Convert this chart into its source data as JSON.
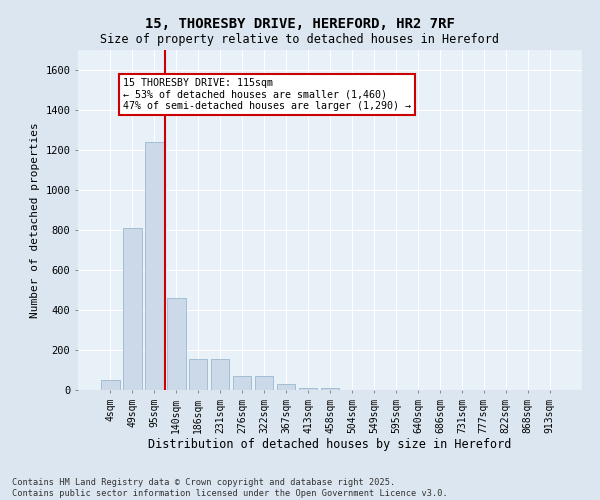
{
  "title1": "15, THORESBY DRIVE, HEREFORD, HR2 7RF",
  "title2": "Size of property relative to detached houses in Hereford",
  "xlabel": "Distribution of detached houses by size in Hereford",
  "ylabel": "Number of detached properties",
  "categories": [
    "4sqm",
    "49sqm",
    "95sqm",
    "140sqm",
    "186sqm",
    "231sqm",
    "276sqm",
    "322sqm",
    "367sqm",
    "413sqm",
    "458sqm",
    "504sqm",
    "549sqm",
    "595sqm",
    "640sqm",
    "686sqm",
    "731sqm",
    "777sqm",
    "822sqm",
    "868sqm",
    "913sqm"
  ],
  "values": [
    50,
    810,
    1240,
    460,
    155,
    155,
    70,
    70,
    30,
    10,
    10,
    0,
    0,
    0,
    0,
    0,
    0,
    0,
    0,
    0,
    0
  ],
  "bar_color": "#ccd9e8",
  "bar_edgecolor": "#9ab8d0",
  "vline_x": 2.5,
  "vline_color": "#cc0000",
  "annotation_text": "15 THORESBY DRIVE: 115sqm\n← 53% of detached houses are smaller (1,460)\n47% of semi-detached houses are larger (1,290) →",
  "annotation_box_color": "#ffffff",
  "annotation_box_edgecolor": "#cc0000",
  "ylim": [
    0,
    1700
  ],
  "yticks": [
    0,
    200,
    400,
    600,
    800,
    1000,
    1200,
    1400,
    1600
  ],
  "footer1": "Contains HM Land Registry data © Crown copyright and database right 2025.",
  "footer2": "Contains public sector information licensed under the Open Government Licence v3.0.",
  "bg_color": "#dce6f0",
  "plot_bg_color": "#e8f0f8"
}
